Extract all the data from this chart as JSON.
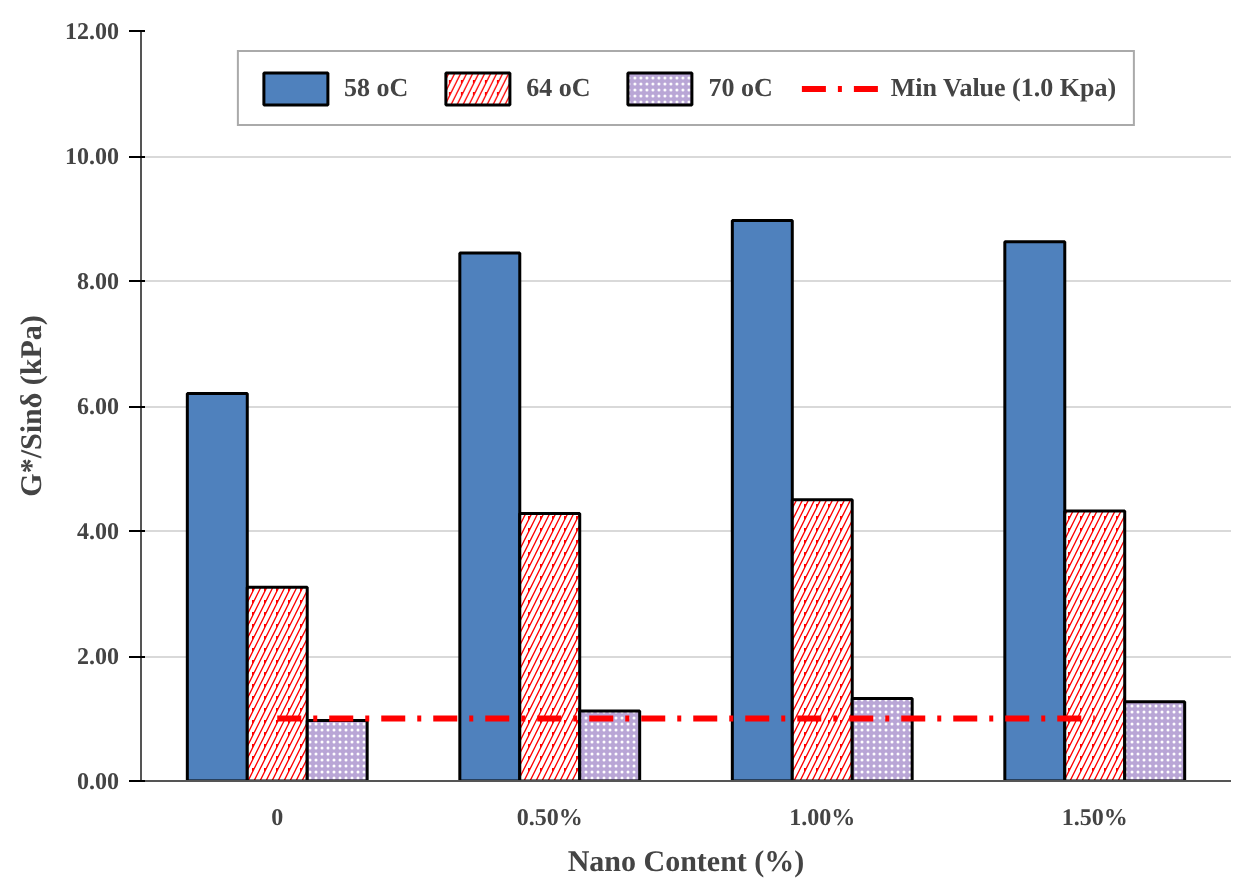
{
  "chart_data": {
    "type": "bar",
    "xlabel": "Nano Content (%)",
    "ylabel": "G*/Sinδ (kPa)",
    "categories": [
      "0",
      "0.50%",
      "1.00%",
      "1.50%"
    ],
    "series": [
      {
        "name": "58 oC",
        "color": "#4f81bd",
        "values": [
          6.2,
          8.45,
          8.97,
          8.63
        ]
      },
      {
        "name": "64 oC",
        "color": "#ff0000",
        "values": [
          3.1,
          4.28,
          4.5,
          4.32
        ]
      },
      {
        "name": "70 oC",
        "color": "#b9a6d6",
        "values": [
          0.97,
          1.12,
          1.32,
          1.27
        ]
      },
      {
        "name": "Min Value (1.0 Kpa)",
        "type": "line",
        "color": "#ff0000",
        "line_style": "dashed",
        "marker": "none",
        "values": [
          1.0,
          1.0,
          1.0,
          1.0
        ]
      }
    ],
    "ylim": [
      0,
      12
    ],
    "yticks": [
      {
        "value": 0,
        "label": "0.00"
      },
      {
        "value": 2,
        "label": "2.00"
      },
      {
        "value": 4,
        "label": "4.00"
      },
      {
        "value": 6,
        "label": "6.00"
      },
      {
        "value": 8,
        "label": "8.00"
      },
      {
        "value": 10,
        "label": "10.00"
      },
      {
        "value": 12,
        "label": "12.00"
      }
    ],
    "grid": "y",
    "legend": "top"
  }
}
